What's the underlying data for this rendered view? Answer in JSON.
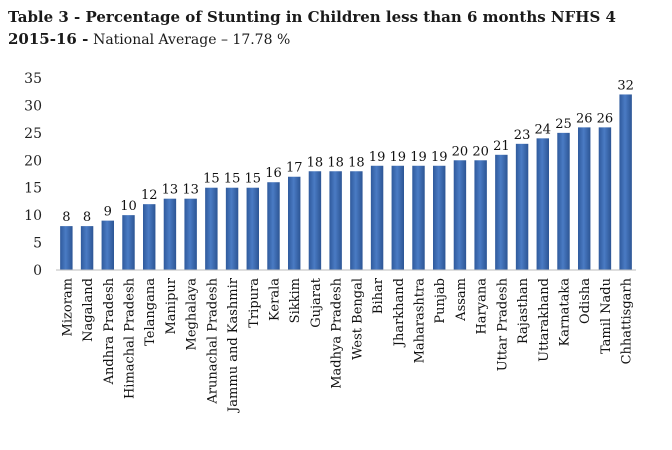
{
  "title": {
    "line1": "Table 3 - Percentage of Stunting in Children less than 6 months NFHS 4",
    "line2_bold": "2015-16 -",
    "line2_normal": "National Average – 17.78 %"
  },
  "chart_data": {
    "type": "bar",
    "categories": [
      "Mizoram",
      "Nagaland",
      "Andhra Pradesh",
      "Himachal Pradesh",
      "Telangana",
      "Manipur",
      "Meghalaya",
      "Arunachal Pradesh",
      "Jammu and Kashmir",
      "Tripura",
      "Kerala",
      "Sikkim",
      "Gujarat",
      "Madhya Pradesh",
      "West Bengal",
      "Bihar",
      "Jharkhand",
      "Maharashtra",
      "Punjab",
      "Assam",
      "Haryana",
      "Uttar Pradesh",
      "Rajasthan",
      "Uttarakhand",
      "Karnataka",
      "Odisha",
      "Tamil Nadu",
      "Chhattisgarh"
    ],
    "values": [
      8,
      8,
      9,
      10,
      12,
      13,
      13,
      15,
      15,
      15,
      16,
      17,
      18,
      18,
      18,
      19,
      19,
      19,
      19,
      20,
      20,
      21,
      23,
      24,
      25,
      26,
      26,
      32
    ],
    "ylim": [
      0,
      35
    ],
    "yticks": [
      0,
      5,
      10,
      15,
      20,
      25,
      30,
      35
    ],
    "grid": false,
    "legend": "none",
    "bar_color": "#3f6fb5"
  }
}
